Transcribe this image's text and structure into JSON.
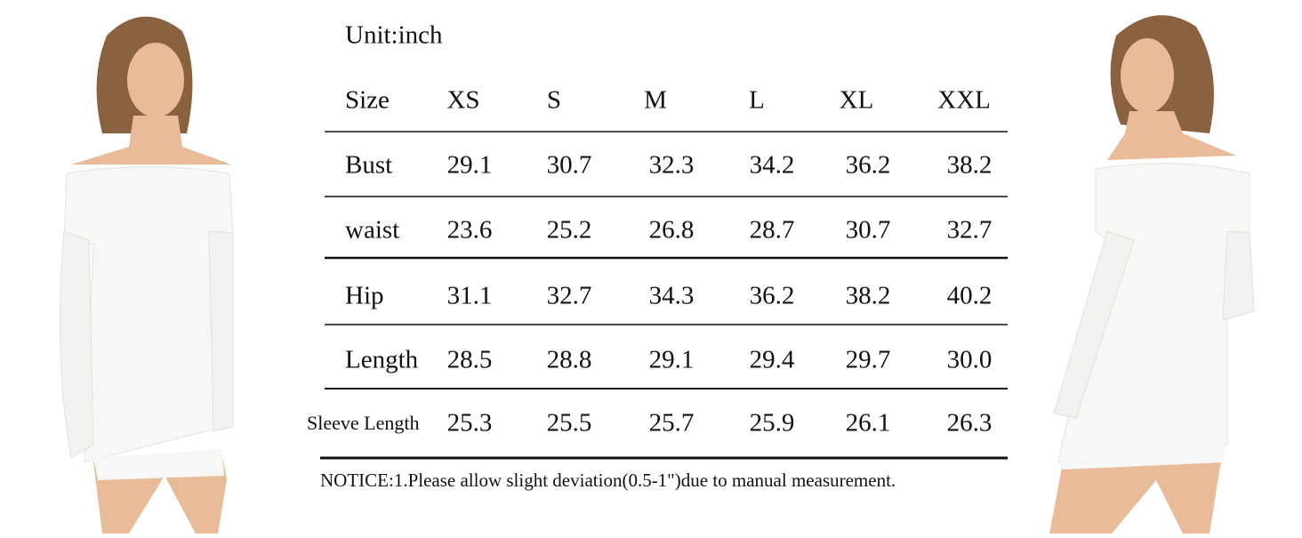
{
  "title": "Unit:inch",
  "table": {
    "header": [
      "Size",
      "XS",
      "S",
      "M",
      "L",
      "XL",
      "XXL"
    ],
    "rows": [
      [
        "Bust",
        "29.1",
        "30.7",
        "32.3",
        "34.2",
        "36.2",
        "38.2"
      ],
      [
        "waist",
        "23.6",
        "25.2",
        "26.8",
        "28.7",
        "30.7",
        "32.7"
      ],
      [
        "Hip",
        "31.1",
        "32.7",
        "34.3",
        "36.2",
        "38.2",
        "40.2"
      ],
      [
        "Length",
        "28.5",
        "28.8",
        "29.1",
        "29.4",
        "29.7",
        "30.0"
      ],
      [
        "Sleeve Length",
        "25.3",
        "25.5",
        "25.7",
        "25.9",
        "26.1",
        "26.3"
      ]
    ]
  },
  "notice": "NOTICE:1.Please allow slight deviation(0.5-1\")due to manual measurement."
}
